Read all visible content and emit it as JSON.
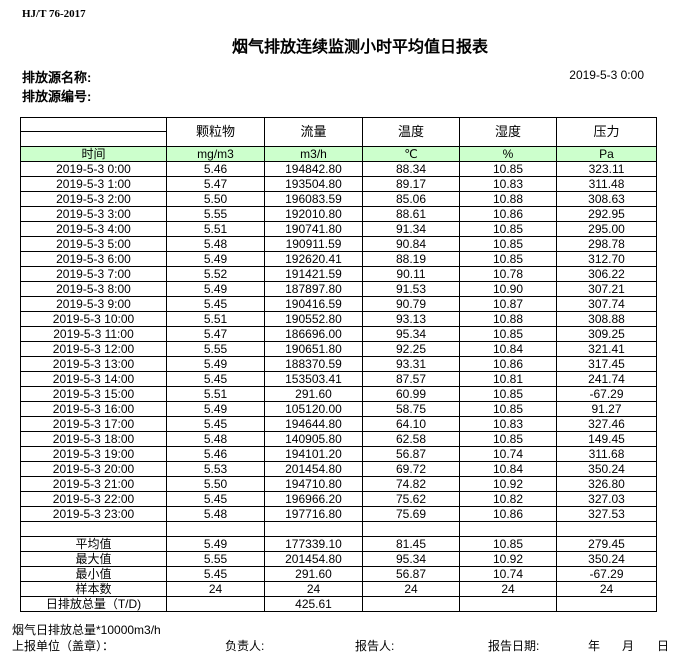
{
  "standard": "HJ/T  76-2017",
  "title": "烟气排放连续监测小时平均值日报表",
  "source_name_label": "排放源名称:",
  "source_id_label": "排放源编号:",
  "report_datetime": "2019-5-3 0:00",
  "columns": [
    "颗粒物",
    "流量",
    "温度",
    "湿度",
    "压力"
  ],
  "time_label": "时间",
  "units": [
    "mg/m3",
    "m3/h",
    "℃",
    "%",
    "Pa"
  ],
  "rows": [
    [
      "2019-5-3 0:00",
      "5.46",
      "194842.80",
      "88.34",
      "10.85",
      "323.11"
    ],
    [
      "2019-5-3 1:00",
      "5.47",
      "193504.80",
      "89.17",
      "10.83",
      "311.48"
    ],
    [
      "2019-5-3 2:00",
      "5.50",
      "196083.59",
      "85.06",
      "10.88",
      "308.63"
    ],
    [
      "2019-5-3 3:00",
      "5.55",
      "192010.80",
      "88.61",
      "10.86",
      "292.95"
    ],
    [
      "2019-5-3 4:00",
      "5.51",
      "190741.80",
      "91.34",
      "10.85",
      "295.00"
    ],
    [
      "2019-5-3 5:00",
      "5.48",
      "190911.59",
      "90.84",
      "10.85",
      "298.78"
    ],
    [
      "2019-5-3 6:00",
      "5.49",
      "192620.41",
      "88.19",
      "10.85",
      "312.70"
    ],
    [
      "2019-5-3 7:00",
      "5.52",
      "191421.59",
      "90.11",
      "10.78",
      "306.22"
    ],
    [
      "2019-5-3 8:00",
      "5.49",
      "187897.80",
      "91.53",
      "10.90",
      "307.21"
    ],
    [
      "2019-5-3 9:00",
      "5.45",
      "190416.59",
      "90.79",
      "10.87",
      "307.74"
    ],
    [
      "2019-5-3 10:00",
      "5.51",
      "190552.80",
      "93.13",
      "10.88",
      "308.88"
    ],
    [
      "2019-5-3 11:00",
      "5.47",
      "186696.00",
      "95.34",
      "10.85",
      "309.25"
    ],
    [
      "2019-5-3 12:00",
      "5.55",
      "190651.80",
      "92.25",
      "10.84",
      "321.41"
    ],
    [
      "2019-5-3 13:00",
      "5.49",
      "188370.59",
      "93.31",
      "10.86",
      "317.45"
    ],
    [
      "2019-5-3 14:00",
      "5.45",
      "153503.41",
      "87.57",
      "10.81",
      "241.74"
    ],
    [
      "2019-5-3 15:00",
      "5.51",
      "291.60",
      "60.99",
      "10.85",
      "-67.29"
    ],
    [
      "2019-5-3 16:00",
      "5.49",
      "105120.00",
      "58.75",
      "10.85",
      "91.27"
    ],
    [
      "2019-5-3 17:00",
      "5.45",
      "194644.80",
      "64.10",
      "10.83",
      "327.46"
    ],
    [
      "2019-5-3 18:00",
      "5.48",
      "140905.80",
      "62.58",
      "10.85",
      "149.45"
    ],
    [
      "2019-5-3 19:00",
      "5.46",
      "194101.20",
      "56.87",
      "10.74",
      "311.68"
    ],
    [
      "2019-5-3 20:00",
      "5.53",
      "201454.80",
      "69.72",
      "10.84",
      "350.24"
    ],
    [
      "2019-5-3 21:00",
      "5.50",
      "194710.80",
      "74.82",
      "10.92",
      "326.80"
    ],
    [
      "2019-5-3 22:00",
      "5.45",
      "196966.20",
      "75.62",
      "10.82",
      "327.03"
    ],
    [
      "2019-5-3 23:00",
      "5.48",
      "197716.80",
      "75.69",
      "10.86",
      "327.53"
    ]
  ],
  "summary": [
    [
      "平均值",
      "5.49",
      "177339.10",
      "81.45",
      "10.85",
      "279.45"
    ],
    [
      "最大值",
      "5.55",
      "201454.80",
      "95.34",
      "10.92",
      "350.24"
    ],
    [
      "最小值",
      "5.45",
      "291.60",
      "56.87",
      "10.74",
      "-67.29"
    ],
    [
      "样本数",
      "24",
      "24",
      "24",
      "24",
      "24"
    ],
    [
      "日排放总量（T/D)",
      "",
      "425.61",
      "",
      "",
      ""
    ]
  ],
  "footer": {
    "note": "烟气日排放总量*10000m3/h",
    "unit_label": "上报单位（盖章）：",
    "manager_label": "负责人:",
    "reporter_label": "报告人:",
    "date_label": "报告日期:",
    "year": "年",
    "month": "月",
    "day": "日"
  }
}
